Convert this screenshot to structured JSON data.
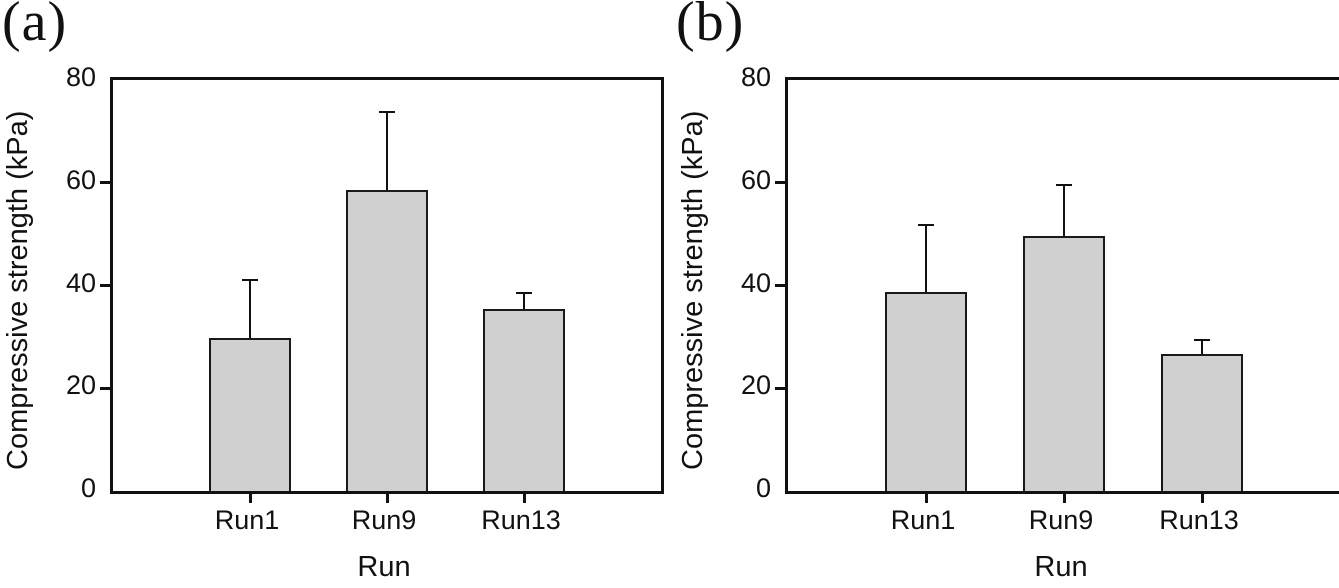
{
  "figure": {
    "background": "#ffffff",
    "axis_color": "#111111",
    "bar_fill": "#d0d0d0",
    "bar_edge": "#1a1a1a"
  },
  "chart_data": [
    {
      "panel_label": "(a)",
      "type": "bar",
      "title": "",
      "xlabel": "Run",
      "ylabel": "Compressive strength (kPa)",
      "categories": [
        "Run1",
        "Run9",
        "Run13"
      ],
      "values": [
        29.7,
        58.5,
        35.5
      ],
      "errors_plus": [
        11.2,
        15.0,
        2.9
      ],
      "ylim": [
        0,
        80
      ],
      "yticks": [
        0,
        20,
        40,
        60,
        80
      ],
      "grid": false,
      "legend": "none"
    },
    {
      "panel_label": "(b)",
      "type": "bar",
      "title": "",
      "xlabel": "Run",
      "ylabel": "Compressive strength (kPa)",
      "categories": [
        "Run1",
        "Run9",
        "Run13"
      ],
      "values": [
        38.8,
        49.6,
        26.7
      ],
      "errors_plus": [
        12.8,
        9.7,
        2.5
      ],
      "ylim": [
        0,
        80
      ],
      "yticks": [
        0,
        20,
        40,
        60,
        80
      ],
      "grid": false,
      "legend": "none"
    }
  ]
}
